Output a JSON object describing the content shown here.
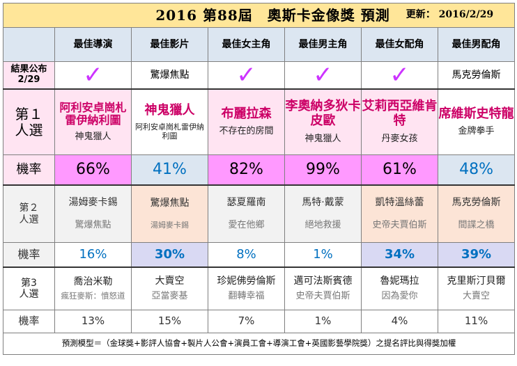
{
  "title": "2016 第88屆　奧斯卡金像獎 預測",
  "updated_label": "更新：",
  "updated_date": "2016/2/29",
  "categories": [
    "最佳導演",
    "最佳影片",
    "最佳女主角",
    "最佳男主角",
    "最佳女配角",
    "最佳男配角"
  ],
  "result": {
    "label_line1": "結果公布",
    "label_line2": "2/29",
    "check_glyph": "✓",
    "cells": [
      "",
      "驚爆焦點",
      "",
      "",
      "",
      "馬克勞倫斯"
    ]
  },
  "rank1": {
    "label_line1": "第１",
    "label_line2": "人選",
    "prob_label": "機率",
    "cells": [
      {
        "name": "阿利安卓崗札雷伊納利圖",
        "film": "神鬼獵人"
      },
      {
        "name": "神鬼獵人",
        "film": "阿利安卓崗札雷伊納利圖"
      },
      {
        "name": "布麗拉森",
        "film": "不存在的房間"
      },
      {
        "name": "李奧納多狄卡皮歐",
        "film": "神鬼獵人"
      },
      {
        "name": "艾莉西亞維肯特",
        "film": "丹麥女孩"
      },
      {
        "name": "席維斯史特龍",
        "film": "金牌拳手"
      }
    ],
    "probs": [
      "66%",
      "41%",
      "82%",
      "99%",
      "61%",
      "48%"
    ]
  },
  "rank2": {
    "label_line1": "第２",
    "label_line2": "人選",
    "prob_label": "機率",
    "cells": [
      {
        "name": "湯姆麥卡錫",
        "film": "驚爆焦點"
      },
      {
        "name": "驚爆焦點",
        "film": "湯姆麥卡錫"
      },
      {
        "name": "瑟夏羅南",
        "film": "愛在他鄉"
      },
      {
        "name": "馬特·戴蒙",
        "film": "絕地救援"
      },
      {
        "name": "凱特溫絲蕾",
        "film": "史帝夫賈伯斯"
      },
      {
        "name": "馬克勞倫斯",
        "film": "間諜之橋"
      }
    ],
    "probs": [
      "16%",
      "30%",
      "8%",
      "1%",
      "34%",
      "39%"
    ]
  },
  "rank3": {
    "label_line1": "第3",
    "label_line2": "人選",
    "prob_label": "機率",
    "cells": [
      {
        "name": "喬治米勒",
        "film": "瘋狂麥斯：憤怒道"
      },
      {
        "name": "大賣空",
        "film": "亞當麥基"
      },
      {
        "name": "珍妮佛勞倫斯",
        "film": "翻轉幸福"
      },
      {
        "name": "邁可法斯賓德",
        "film": "史帝夫賈伯斯"
      },
      {
        "name": "魯妮瑪拉",
        "film": "因為愛你"
      },
      {
        "name": "克里斯汀貝爾",
        "film": "大賣空"
      }
    ],
    "probs": [
      "13%",
      "15%",
      "7%",
      "1%",
      "4%",
      "11%"
    ]
  },
  "footer": "預測模型＝（金球獎+影評人協會+製片人公會+演員工會+導演工會+英國影藝學院獎）之提名評比與得獎加權",
  "colors": {
    "title_bg": "#ffe699",
    "header_bg": "#dce6f1",
    "winner_pink": "#ffe4f2",
    "highlight_magenta": "#ff99ff",
    "check_purple": "#cc33ff",
    "name_red": "#cc0066",
    "prob_blue": "#0070c0"
  }
}
